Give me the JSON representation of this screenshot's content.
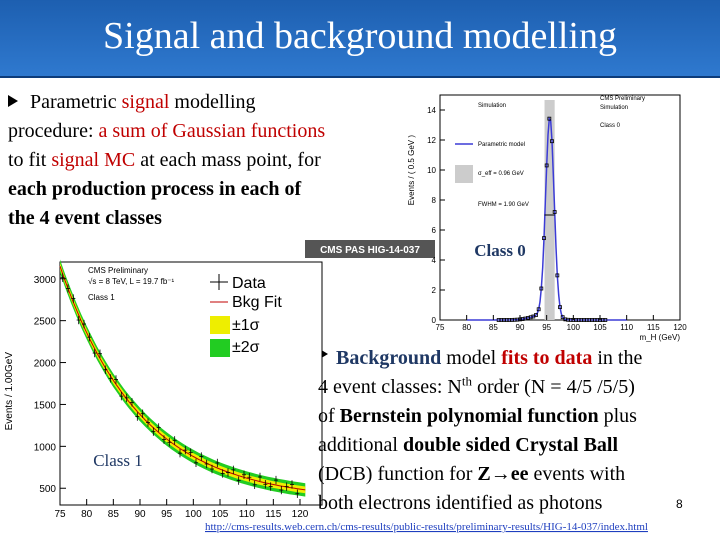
{
  "header": {
    "title": "Signal and background modelling"
  },
  "bullets": [
    {
      "lines": [
        [
          {
            "text": "Parametric "
          },
          {
            "text": "signal",
            "color": "#c00000"
          },
          {
            "text": " modelling"
          }
        ],
        [
          {
            "text": "procedure: "
          },
          {
            "text": "a sum of Gaussian functions",
            "color": "#c00000"
          }
        ],
        [
          {
            "text": "to fit "
          },
          {
            "text": "signal MC",
            "color": "#c00000"
          },
          {
            "text": " at each mass point, for"
          }
        ],
        [
          {
            "text": "each production process in each of",
            "bold": true
          }
        ],
        [
          {
            "text": "the 4 event classes",
            "bold": true
          }
        ]
      ]
    },
    {
      "lines": [
        [
          {
            "text": "Background",
            "bold": true,
            "color": "#1f3864"
          },
          {
            "text": " model "
          },
          {
            "text": "fits to data",
            "bold": true,
            "color": "#c00000"
          },
          {
            "text": " in the"
          }
        ],
        [
          {
            "text": "4 event  classes: N"
          },
          {
            "text": "th",
            "sup": true
          },
          {
            "text": " order (N = 4/5 /5/5)"
          }
        ],
        [
          {
            "text": "of "
          },
          {
            "text": "Bernstein polynomial function",
            "bold": true
          },
          {
            "text": " plus"
          }
        ],
        [
          {
            "text": "additional "
          },
          {
            "text": "double sided Crystal Ball",
            "bold": true
          }
        ],
        [
          {
            "text": "(DCB) function for "
          },
          {
            "text": "Z→ee",
            "bold": true
          },
          {
            "text": " events with"
          }
        ],
        [
          {
            "text": "both electrons  identified as photons"
          }
        ]
      ]
    }
  ],
  "signal_plot": {
    "caption": "Class 0",
    "y_label": "Events / ( 0.5 GeV )",
    "x_label": "m_H (GeV)",
    "labels": [
      "CMS Preliminary",
      "Simulation",
      "Class 0"
    ],
    "legend": [
      "Simulation",
      "Parametric model",
      "σ_eff = 0.96 GeV",
      "FWHM = 1.90 GeV"
    ],
    "xlim": [
      75,
      120
    ],
    "xticks": [
      75,
      80,
      85,
      90,
      95,
      100,
      105,
      110,
      115,
      120
    ],
    "ylim": [
      0,
      15
    ],
    "yticks": [
      0,
      2,
      4,
      6,
      8,
      10,
      12,
      14
    ]
  },
  "note": "CMS PAS HIG-14-037",
  "background_plot": {
    "caption": "Class 1",
    "y_label": "Events / 1.00GeV",
    "labels": [
      "CMS Preliminary",
      "√s = 8 TeV, L = 19.7 fb⁻¹",
      "Class 1"
    ],
    "legend": [
      "Data",
      "Bkg Fit",
      "±1σ",
      "±2σ"
    ],
    "xlim": [
      75,
      120
    ],
    "xticks": [
      75,
      80,
      85,
      90,
      95,
      100,
      105,
      110,
      115,
      120
    ],
    "ylim": [
      300,
      3200
    ],
    "yticks": [
      500,
      1000,
      1500,
      2000,
      2500,
      3000
    ]
  },
  "footer": {
    "page": "8",
    "url": "http://cms-results.web.cern.ch/cms-results/public-results/preliminary-results/HIG-14-037/index.html"
  }
}
